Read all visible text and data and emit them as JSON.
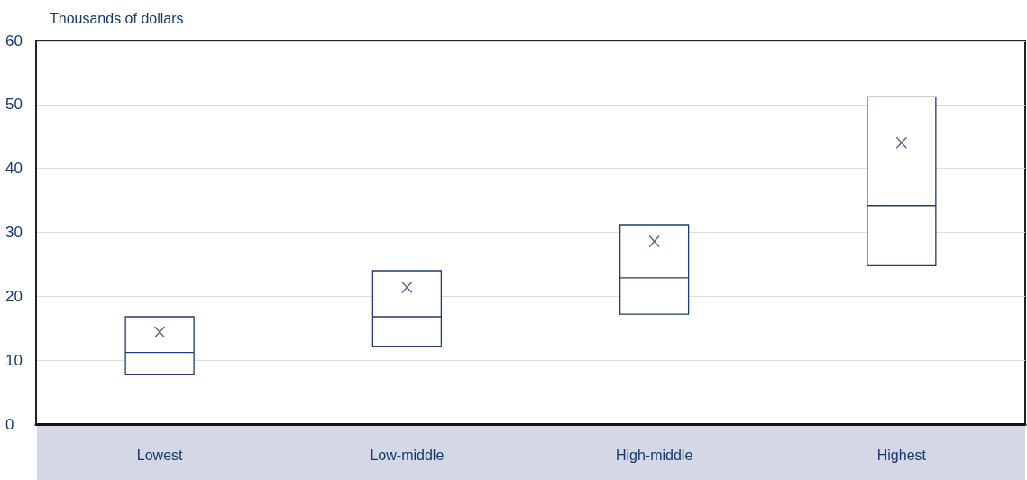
{
  "chart_data": {
    "type": "box",
    "ylabel": "Thousands of dollars",
    "categories": [
      "Lowest",
      "Low-middle",
      "High-middle",
      "Highest"
    ],
    "boxes": [
      {
        "low": 7.7,
        "q1": 7.7,
        "median": 11.2,
        "q3": 16.8,
        "high": 16.8,
        "mean": 14.4
      },
      {
        "low": 12.1,
        "q1": 12.1,
        "median": 16.8,
        "q3": 24.0,
        "high": 24.0,
        "mean": 21.4
      },
      {
        "low": 17.2,
        "q1": 17.2,
        "median": 22.9,
        "q3": 31.2,
        "high": 31.2,
        "mean": 28.6
      },
      {
        "low": 24.8,
        "q1": 24.8,
        "median": 34.2,
        "q3": 51.2,
        "high": 51.2,
        "mean": 44.0
      }
    ],
    "color": "#1f3d6e",
    "marker": "cross",
    "ylim": [
      0,
      60
    ],
    "yticks": [
      0,
      10,
      20,
      30,
      40,
      50,
      60
    ],
    "grid": "y"
  }
}
